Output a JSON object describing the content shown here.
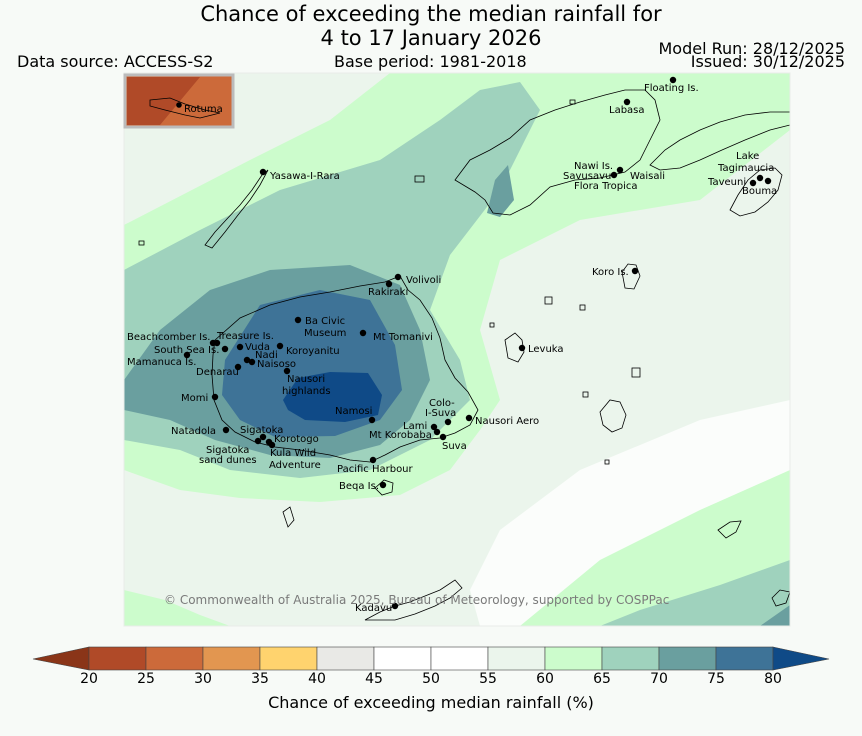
{
  "title": {
    "line1": "Chance of exceeding the median rainfall for",
    "line2": "4 to 17 January 2026"
  },
  "header": {
    "data_source": "Data source: ACCESS-S2",
    "base_period": "Base period: 1981-2018",
    "model_run": "Model Run: 28/12/2025",
    "issued": "Issued: 30/12/2025"
  },
  "inset": {
    "label": "Rotuma"
  },
  "places": [
    {
      "name": "Floating Is."
    },
    {
      "name": "Labasa"
    },
    {
      "name": "Nawi Is."
    },
    {
      "name": "Savusavu"
    },
    {
      "name": "Waisali"
    },
    {
      "name": "Flora Tropica"
    },
    {
      "name": "Lake"
    },
    {
      "name": "Tagimaucia"
    },
    {
      "name": "Taveuni"
    },
    {
      "name": "Bouma"
    },
    {
      "name": "Yasawa-I-Rara"
    },
    {
      "name": "Koro Is."
    },
    {
      "name": "Volivoli"
    },
    {
      "name": "Rakiraki"
    },
    {
      "name": "Beachcomber Is."
    },
    {
      "name": "Treasure Is."
    },
    {
      "name": "Ba Civic"
    },
    {
      "name": "Museum"
    },
    {
      "name": "Mt Tomanivi"
    },
    {
      "name": "South Sea Is."
    },
    {
      "name": "Vuda"
    },
    {
      "name": "Koroyanitu"
    },
    {
      "name": "Nadi"
    },
    {
      "name": "Mamanuca Is."
    },
    {
      "name": "Naisoso"
    },
    {
      "name": "Denarau"
    },
    {
      "name": "Nausori"
    },
    {
      "name": "highlands"
    },
    {
      "name": "Levuka"
    },
    {
      "name": "Momi"
    },
    {
      "name": "Namosi"
    },
    {
      "name": "Colo-"
    },
    {
      "name": "I-Suva"
    },
    {
      "name": "Natadola"
    },
    {
      "name": "Sigatoka"
    },
    {
      "name": "Lami"
    },
    {
      "name": "Nausori Aero"
    },
    {
      "name": "Korotogo"
    },
    {
      "name": "Mt Korobaba"
    },
    {
      "name": "Sigatoka"
    },
    {
      "name": "sand dunes"
    },
    {
      "name": "Kula Wild"
    },
    {
      "name": "Suva"
    },
    {
      "name": "Adventure"
    },
    {
      "name": "Pacific Harbour"
    },
    {
      "name": "Beqa Is."
    },
    {
      "name": "Kadavu"
    }
  ],
  "copyright": "© Commonwealth of Australia 2025, Bureau of Meteorology, supported by COSPPac",
  "colorbar": {
    "title": "Chance of exceeding median rainfall (%)",
    "ticks": [
      "20",
      "25",
      "30",
      "35",
      "40",
      "45",
      "50",
      "55",
      "60",
      "65",
      "70",
      "75",
      "80"
    ],
    "colors": {
      "below20": "#8a3518",
      "b20_25": "#b04a28",
      "b25_30": "#cc6a3a",
      "b30_35": "#e29650",
      "b35_40": "#ffd36e",
      "b40_45": "#e9e9e6",
      "b45_50": "#ffffff",
      "b50_55": "#ffffff",
      "b55_60": "#ebf5ec",
      "b60_65": "#ccfccc",
      "b65_70": "#9fd2bd",
      "b70_75": "#6a9f9f",
      "b75_80": "#3e7397",
      "above80": "#0f4a87"
    }
  }
}
